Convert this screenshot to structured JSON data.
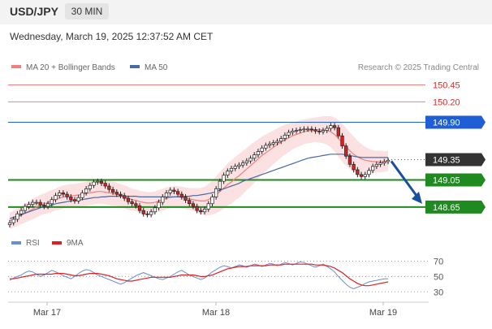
{
  "header": {
    "symbol": "USD/JPY",
    "timeframe": "30 MIN",
    "datetime": "Wednesday, March 19, 2025 12:37:52 AM CET"
  },
  "chart_data": {
    "type": "candlestick",
    "legend_top": [
      {
        "label": "MA 20 + Bollinger Bands",
        "color": "#f08080"
      },
      {
        "label": "MA 50",
        "color": "#4a6aa5"
      }
    ],
    "credit": "Research © 2025 Trading Central",
    "ylim": [
      148.35,
      150.6
    ],
    "levels": [
      {
        "value": 150.45,
        "label": "150.45",
        "kind": "resistance-thin",
        "color": "#f08080"
      },
      {
        "value": 150.2,
        "label": "150.20",
        "kind": "resistance-thin",
        "color": "#f08080"
      },
      {
        "value": 149.9,
        "label": "149.90",
        "kind": "pivot",
        "color": "#1e5fd6"
      },
      {
        "value": 149.35,
        "label": "149.35",
        "kind": "last",
        "color": "#333333"
      },
      {
        "value": 149.05,
        "label": "149.05",
        "kind": "support",
        "color": "#1f8a1f"
      },
      {
        "value": 148.65,
        "label": "148.65",
        "kind": "support",
        "color": "#1f8a1f"
      }
    ],
    "closes": [
      148.42,
      148.47,
      148.55,
      148.6,
      148.66,
      148.69,
      148.72,
      148.72,
      148.68,
      148.66,
      148.7,
      148.76,
      148.82,
      148.86,
      148.84,
      148.8,
      148.76,
      148.74,
      148.79,
      148.86,
      148.92,
      148.97,
      149.02,
      149.03,
      149.0,
      148.96,
      148.91,
      148.87,
      148.84,
      148.82,
      148.78,
      148.73,
      148.7,
      148.67,
      148.6,
      148.55,
      148.54,
      148.58,
      148.64,
      148.72,
      148.8,
      148.86,
      148.9,
      148.88,
      148.84,
      148.8,
      148.75,
      148.7,
      148.66,
      148.6,
      148.58,
      148.62,
      148.7,
      148.8,
      148.92,
      149.03,
      149.12,
      149.18,
      149.22,
      149.25,
      149.27,
      149.3,
      149.33,
      149.37,
      149.42,
      149.47,
      149.52,
      149.56,
      149.58,
      149.6,
      149.62,
      149.66,
      149.71,
      149.75,
      149.77,
      149.78,
      149.79,
      149.8,
      149.8,
      149.79,
      149.77,
      149.76,
      149.78,
      149.81,
      149.85,
      149.82,
      149.7,
      149.55,
      149.4,
      149.28,
      149.2,
      149.13,
      149.1,
      149.13,
      149.19,
      149.25,
      149.28,
      149.3,
      149.32,
      149.34
    ],
    "ma20": [
      148.45,
      148.47,
      148.5,
      148.53,
      148.56,
      148.59,
      148.62,
      148.65,
      148.68,
      148.7,
      148.72,
      148.74,
      148.76,
      148.78,
      148.8,
      148.81,
      148.82,
      148.82,
      148.83,
      148.84,
      148.85,
      148.86,
      148.87,
      148.88,
      148.88,
      148.87,
      148.86,
      148.85,
      148.84,
      148.82,
      148.8,
      148.78,
      148.76,
      148.75,
      148.73,
      148.72,
      148.71,
      148.71,
      148.72,
      148.74,
      148.76,
      148.78,
      148.79,
      148.8,
      148.8,
      148.79,
      148.78,
      148.77,
      148.76,
      148.75,
      148.74,
      148.74,
      148.76,
      148.79,
      148.83,
      148.88,
      148.93,
      148.98,
      149.02,
      149.07,
      149.11,
      149.16,
      149.21,
      149.26,
      149.31,
      149.36,
      149.41,
      149.45,
      149.49,
      149.53,
      149.57,
      149.61,
      149.64,
      149.67,
      149.7,
      149.72,
      149.74,
      149.76,
      149.77,
      149.78,
      149.79,
      149.79,
      149.79,
      149.78,
      149.76,
      149.72,
      149.66,
      149.6,
      149.54,
      149.48,
      149.43,
      149.39,
      149.36,
      149.34,
      149.33,
      149.32,
      149.32,
      149.32,
      149.32,
      149.33
    ],
    "ma50": [
      148.48,
      148.5,
      148.52,
      148.54,
      148.56,
      148.58,
      148.6,
      148.62,
      148.64,
      148.66,
      148.67,
      148.68,
      148.7,
      148.71,
      148.72,
      148.73,
      148.74,
      148.75,
      148.75,
      148.76,
      148.77,
      148.78,
      148.79,
      148.79,
      148.8,
      148.8,
      148.81,
      148.81,
      148.81,
      148.81,
      148.81,
      148.81,
      148.81,
      148.81,
      148.8,
      148.8,
      148.8,
      148.8,
      148.8,
      148.8,
      148.8,
      148.8,
      148.8,
      148.8,
      148.8,
      148.81,
      148.81,
      148.81,
      148.82,
      148.82,
      148.83,
      148.84,
      148.85,
      148.86,
      148.88,
      148.9,
      148.92,
      148.94,
      148.96,
      148.98,
      149.0,
      149.03,
      149.05,
      149.07,
      149.09,
      149.11,
      149.13,
      149.15,
      149.17,
      149.19,
      149.21,
      149.23,
      149.25,
      149.27,
      149.29,
      149.31,
      149.33,
      149.35,
      149.37,
      149.38,
      149.39,
      149.4,
      149.41,
      149.42,
      149.43,
      149.43,
      149.43,
      149.43,
      149.42,
      149.41,
      149.4,
      149.39,
      149.38,
      149.38,
      149.38,
      149.38,
      149.38,
      149.38,
      149.38,
      149.38
    ],
    "bb_width": [
      0.12,
      0.12,
      0.13,
      0.13,
      0.14,
      0.14,
      0.15,
      0.15,
      0.15,
      0.15,
      0.16,
      0.16,
      0.16,
      0.17,
      0.17,
      0.17,
      0.17,
      0.17,
      0.17,
      0.17,
      0.18,
      0.18,
      0.18,
      0.18,
      0.18,
      0.18,
      0.18,
      0.18,
      0.17,
      0.17,
      0.17,
      0.17,
      0.16,
      0.16,
      0.16,
      0.16,
      0.16,
      0.16,
      0.16,
      0.16,
      0.16,
      0.16,
      0.16,
      0.16,
      0.16,
      0.16,
      0.16,
      0.16,
      0.17,
      0.18,
      0.19,
      0.21,
      0.23,
      0.25,
      0.27,
      0.29,
      0.3,
      0.31,
      0.32,
      0.32,
      0.32,
      0.32,
      0.31,
      0.31,
      0.3,
      0.29,
      0.28,
      0.27,
      0.26,
      0.25,
      0.24,
      0.23,
      0.22,
      0.21,
      0.2,
      0.19,
      0.19,
      0.18,
      0.18,
      0.18,
      0.18,
      0.19,
      0.2,
      0.21,
      0.23,
      0.25,
      0.27,
      0.28,
      0.28,
      0.27,
      0.26,
      0.24,
      0.22,
      0.2,
      0.18,
      0.17,
      0.16,
      0.16,
      0.15,
      0.15
    ],
    "forecast": {
      "from": 149.35,
      "to": 148.65
    },
    "rsi_panel": {
      "legend": [
        {
          "label": "RSI",
          "color": "#6a8ed0"
        },
        {
          "label": "9MA",
          "color": "#e02020"
        }
      ],
      "ylim": [
        25,
        80
      ],
      "levels": [
        {
          "value": 70,
          "label": "70"
        },
        {
          "value": 50,
          "label": "50"
        },
        {
          "value": 30,
          "label": "30"
        }
      ],
      "rsi": [
        45,
        48,
        50,
        52,
        55,
        57,
        56,
        53,
        50,
        52,
        55,
        58,
        56,
        54,
        51,
        49,
        47,
        50,
        54,
        57,
        59,
        58,
        55,
        52,
        50,
        48,
        46,
        44,
        42,
        40,
        42,
        45,
        48,
        51,
        53,
        55,
        53,
        51,
        49,
        47,
        46,
        48,
        50,
        53,
        56,
        58,
        55,
        52,
        50,
        48,
        46,
        48,
        52,
        56,
        59,
        62,
        64,
        63,
        61,
        63,
        65,
        64,
        62,
        64,
        66,
        65,
        63,
        65,
        67,
        66,
        64,
        66,
        68,
        67,
        65,
        67,
        69,
        68,
        66,
        64,
        62,
        64,
        66,
        63,
        60,
        56,
        50,
        45,
        40,
        36,
        34,
        36,
        38,
        41,
        43,
        44,
        45,
        46,
        47,
        47
      ],
      "ma9": [
        47,
        47,
        48,
        49,
        50,
        51,
        52,
        53,
        53,
        53,
        53,
        53,
        54,
        54,
        54,
        53,
        52,
        51,
        51,
        52,
        53,
        54,
        54,
        54,
        53,
        52,
        51,
        49,
        47,
        46,
        45,
        44,
        44,
        45,
        46,
        47,
        48,
        49,
        49,
        49,
        49,
        49,
        49,
        50,
        51,
        52,
        52,
        52,
        52,
        51,
        50,
        50,
        51,
        52,
        54,
        56,
        58,
        60,
        61,
        62,
        63,
        63,
        63,
        64,
        64,
        64,
        64,
        64,
        65,
        65,
        65,
        65,
        66,
        66,
        66,
        66,
        66,
        66,
        66,
        66,
        65,
        65,
        65,
        64,
        63,
        61,
        58,
        55,
        51,
        47,
        44,
        41,
        39,
        38,
        38,
        39,
        40,
        41,
        42,
        43
      ]
    },
    "x_ticks": [
      "Mar 17",
      "Mar 18",
      "Mar 19"
    ]
  }
}
